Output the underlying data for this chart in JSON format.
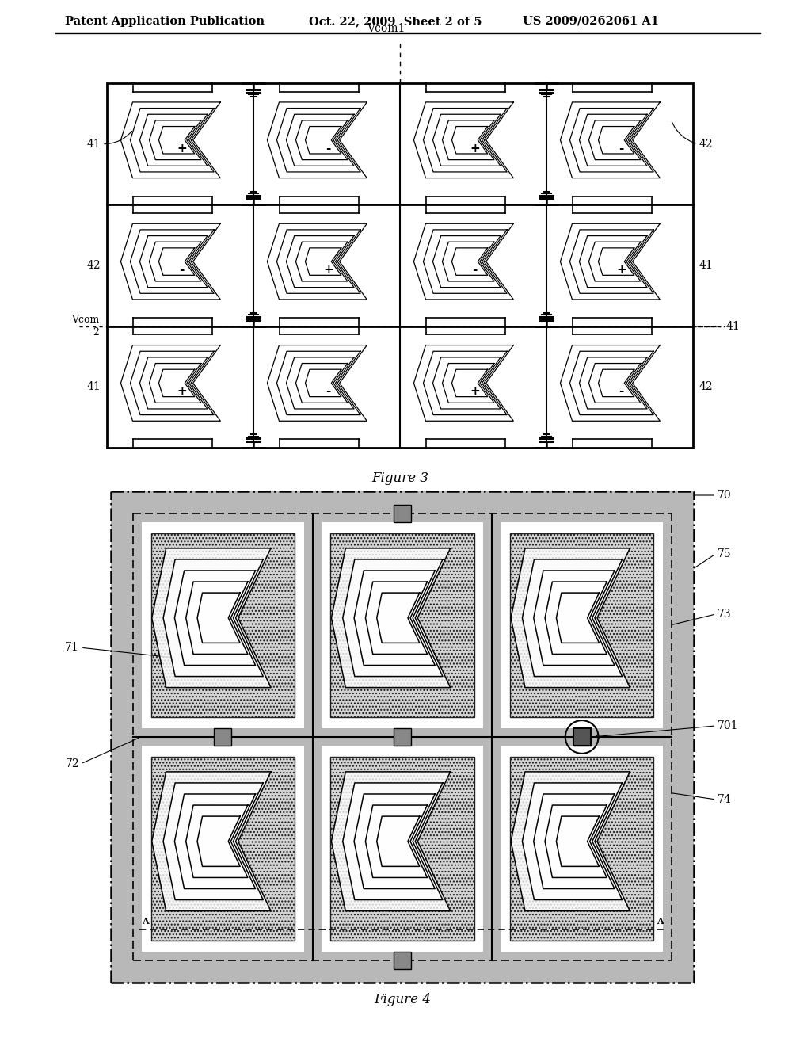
{
  "bg_color": "#ffffff",
  "header_left": "Patent Application Publication",
  "header_mid": "Oct. 22, 2009  Sheet 2 of 5",
  "header_right": "US 2009/0262061 A1",
  "fig3_caption": "Figure 3",
  "fig4_caption": "Figure 4",
  "fig3_signs": [
    [
      "+",
      "-",
      "+",
      "-"
    ],
    [
      "-",
      "+",
      "-",
      "+"
    ],
    [
      "+",
      "-",
      "+",
      "-"
    ]
  ],
  "fig3_left_labels": [
    "41",
    "42",
    "41"
  ],
  "fig3_right_labels": [
    "42",
    "41",
    "42"
  ],
  "fig4_labels": {
    "70": "70",
    "71": "71",
    "72": "72",
    "73": "73",
    "74": "74",
    "75": "75",
    "701": "701",
    "A_left": "A",
    "A_right": "A"
  },
  "stripe_color": "#b8b8b8",
  "dot_color": "#666666",
  "pad_color": "#888888"
}
